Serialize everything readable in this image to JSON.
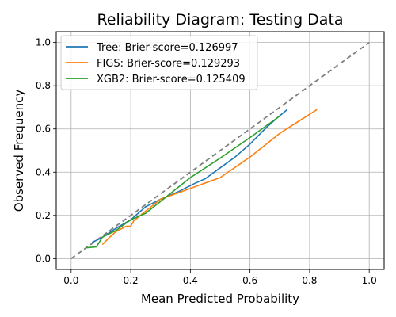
{
  "chart_data": {
    "type": "line",
    "title": "Reliability Diagram: Testing Data",
    "xlabel": "Mean Predicted Probability",
    "ylabel": "Observed Frequency",
    "xlim": [
      -0.05,
      1.05
    ],
    "ylim": [
      -0.05,
      1.05
    ],
    "xticks": [
      0.0,
      0.2,
      0.4,
      0.6,
      0.8,
      1.0
    ],
    "yticks": [
      0.0,
      0.2,
      0.4,
      0.6,
      0.8,
      1.0
    ],
    "xtick_labels": [
      "0.0",
      "0.2",
      "0.4",
      "0.6",
      "0.8",
      "1.0"
    ],
    "ytick_labels": [
      "0.0",
      "0.2",
      "0.4",
      "0.6",
      "0.8",
      "1.0"
    ],
    "grid": true,
    "legend_position": "top-left",
    "reference_line": {
      "x": [
        0.0,
        1.0
      ],
      "y": [
        0.0,
        1.0
      ],
      "color": "#808080",
      "style": "dashed"
    },
    "series": [
      {
        "name": "Tree: Brier-score=0.126997",
        "color": "#1f77b4",
        "x": [
          0.07,
          0.1,
          0.15,
          0.2,
          0.25,
          0.3,
          0.36,
          0.41,
          0.45,
          0.5,
          0.55,
          0.6,
          0.65,
          0.69,
          0.725
        ],
        "y": [
          0.075,
          0.095,
          0.14,
          0.18,
          0.24,
          0.275,
          0.31,
          0.345,
          0.37,
          0.42,
          0.47,
          0.53,
          0.6,
          0.65,
          0.69
        ]
      },
      {
        "name": "FIGS: Brier-score=0.129293",
        "color": "#ff7f0e",
        "x": [
          0.105,
          0.13,
          0.15,
          0.185,
          0.2,
          0.21,
          0.25,
          0.3,
          0.4,
          0.5,
          0.6,
          0.7,
          0.825
        ],
        "y": [
          0.065,
          0.1,
          0.125,
          0.15,
          0.15,
          0.175,
          0.22,
          0.275,
          0.325,
          0.375,
          0.47,
          0.58,
          0.69
        ]
      },
      {
        "name": "XGB2: Brier-score=0.125409",
        "color": "#2ca02c",
        "x": [
          0.05,
          0.085,
          0.105,
          0.15,
          0.2,
          0.25,
          0.3,
          0.35,
          0.4,
          0.45,
          0.5,
          0.6,
          0.7
        ],
        "y": [
          0.05,
          0.055,
          0.1,
          0.13,
          0.18,
          0.21,
          0.265,
          0.32,
          0.375,
          0.42,
          0.465,
          0.56,
          0.66
        ]
      }
    ]
  }
}
